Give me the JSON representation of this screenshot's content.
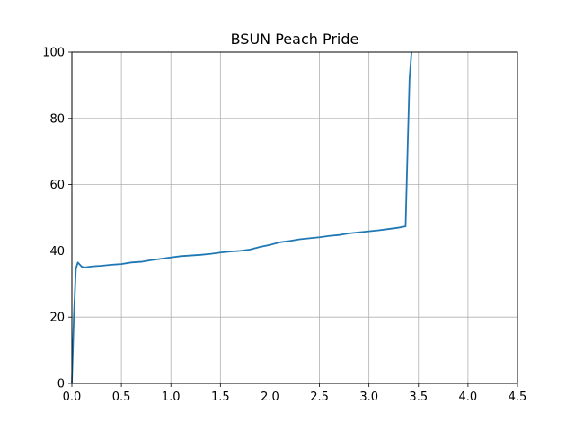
{
  "chart_data": {
    "type": "line",
    "title": "BSUN Peach Pride",
    "xlabel": "",
    "ylabel": "",
    "xlim": [
      0,
      4.5
    ],
    "ylim": [
      0,
      100
    ],
    "grid": true,
    "x_ticks": [
      0.0,
      0.5,
      1.0,
      1.5,
      2.0,
      2.5,
      3.0,
      3.5,
      4.0,
      4.5
    ],
    "x_tick_labels": [
      "0.0",
      "0.5",
      "1.0",
      "1.5",
      "2.0",
      "2.5",
      "3.0",
      "3.5",
      "4.0",
      "4.5"
    ],
    "y_ticks": [
      0,
      20,
      40,
      60,
      80,
      100
    ],
    "y_tick_labels": [
      "0",
      "20",
      "40",
      "60",
      "80",
      "100"
    ],
    "series": [
      {
        "color": "#1f77b4",
        "x": [
          0.0,
          0.02,
          0.04,
          0.06,
          0.1,
          0.13,
          0.2,
          0.3,
          0.4,
          0.5,
          0.6,
          0.7,
          0.8,
          0.9,
          1.0,
          1.1,
          1.2,
          1.3,
          1.4,
          1.5,
          1.6,
          1.7,
          1.8,
          1.9,
          2.0,
          2.1,
          2.2,
          2.3,
          2.4,
          2.5,
          2.6,
          2.7,
          2.8,
          2.9,
          3.0,
          3.1,
          3.2,
          3.3,
          3.37,
          3.39,
          3.41,
          3.43
        ],
        "y": [
          0,
          20,
          34.5,
          36.5,
          35.2,
          35.0,
          35.3,
          35.5,
          35.8,
          36.0,
          36.5,
          36.7,
          37.2,
          37.6,
          38.0,
          38.4,
          38.6,
          38.8,
          39.1,
          39.5,
          39.8,
          40.0,
          40.4,
          41.2,
          41.8,
          42.6,
          43.0,
          43.5,
          43.8,
          44.1,
          44.5,
          44.8,
          45.3,
          45.6,
          45.9,
          46.2,
          46.6,
          47.0,
          47.4,
          70.0,
          92.0,
          100.0
        ]
      }
    ]
  }
}
